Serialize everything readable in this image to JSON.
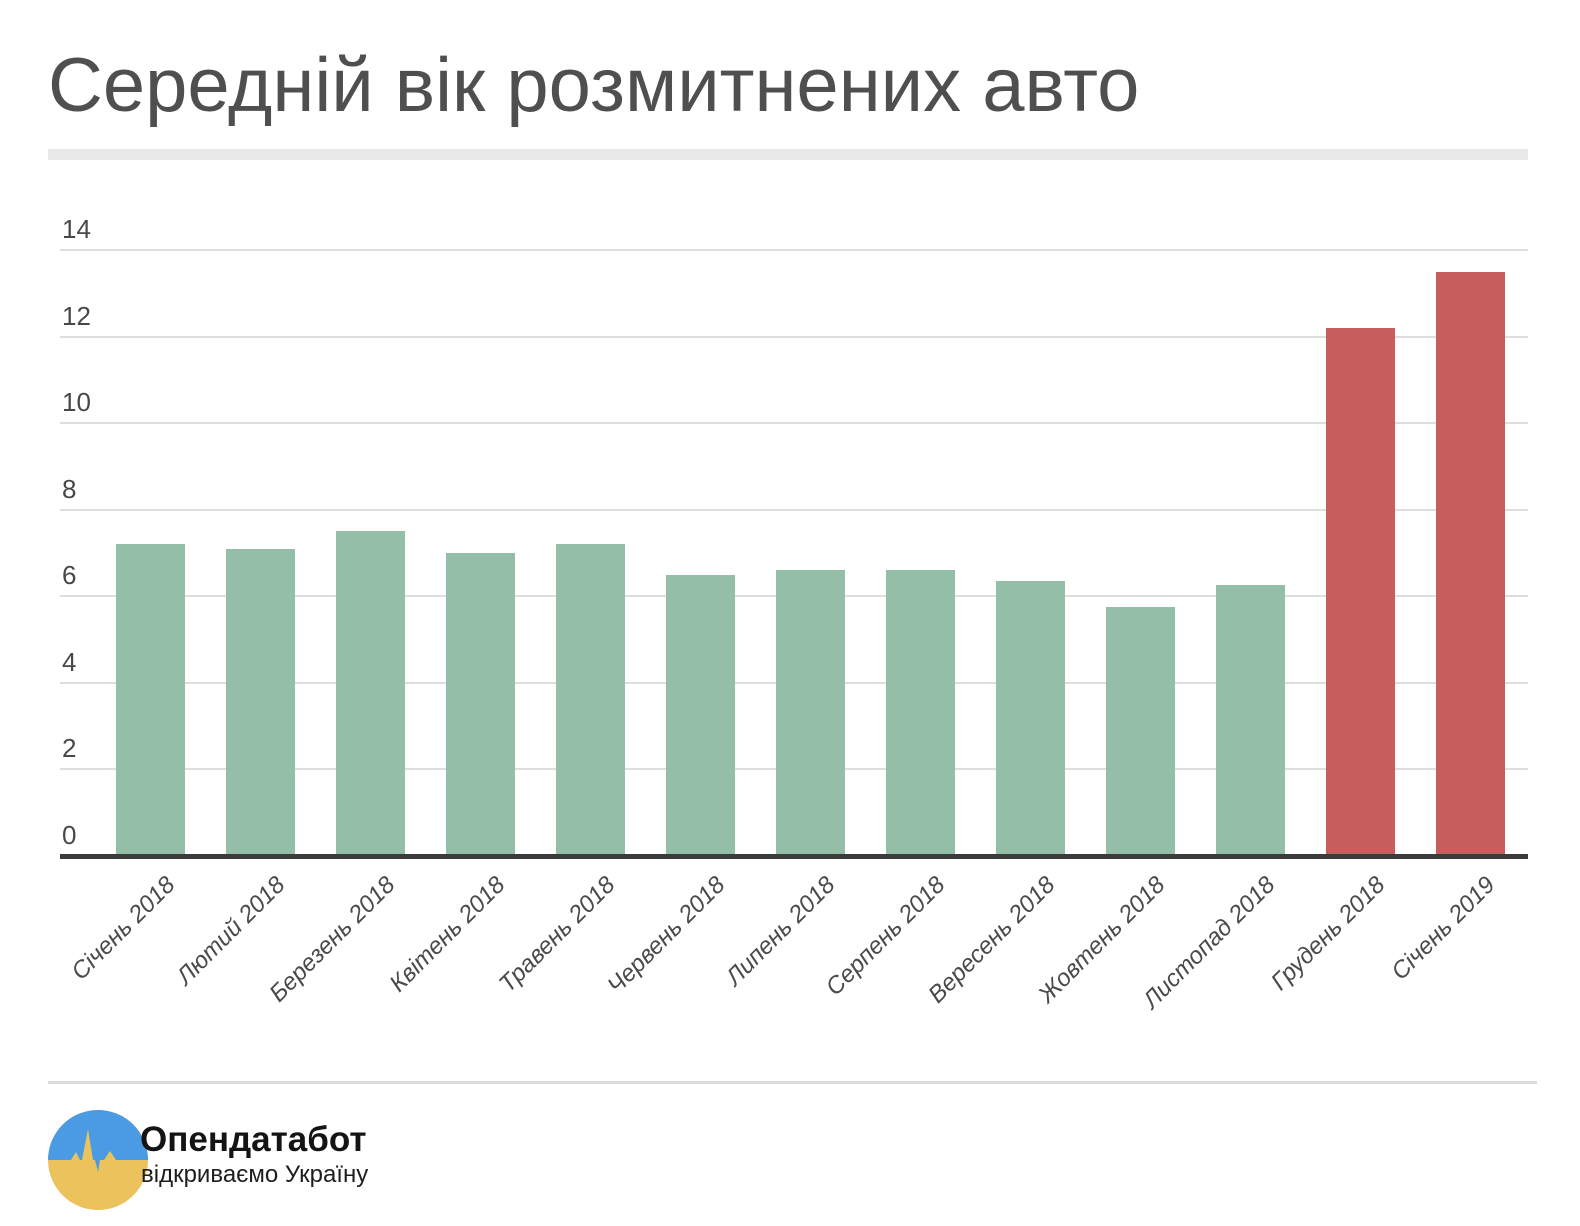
{
  "title": "Середній вік розмитнених авто",
  "footer": {
    "brand": "Опендатабот",
    "tagline": "відкриваємо Україну"
  },
  "logo": {
    "name": "opendatabot-logo",
    "colors": {
      "blue": "#4a9be3",
      "yellow": "#ebc25b"
    }
  },
  "chart_data": {
    "type": "bar",
    "title": "Середній вік розмитнених авто",
    "categories": [
      "Січень 2018",
      "Лютий 2018",
      "Березень 2018",
      "Квітень 2018",
      "Травень 2018",
      "Червень 2018",
      "Липень 2018",
      "Серпень 2018",
      "Вересень 2018",
      "Жовтень 2018",
      "Листопад 2018",
      "Грудень 2018",
      "Січень 2019"
    ],
    "values": [
      7.2,
      7.1,
      7.5,
      7.0,
      7.2,
      6.5,
      6.6,
      6.6,
      6.35,
      5.75,
      6.25,
      12.2,
      13.5
    ],
    "highlight_indices": [
      11,
      12
    ],
    "bar_color_default": "#94bea7",
    "bar_color_highlight": "#c85d5d",
    "xlabel": "",
    "ylabel": "",
    "ylim": [
      0,
      14
    ],
    "yticks": [
      0,
      2,
      4,
      6,
      8,
      10,
      12,
      14
    ],
    "grid": true,
    "gridline_color": "#dedede",
    "axis_color": "#3b3b3b",
    "legend": "none",
    "x_tick_rotation_deg": -45
  }
}
